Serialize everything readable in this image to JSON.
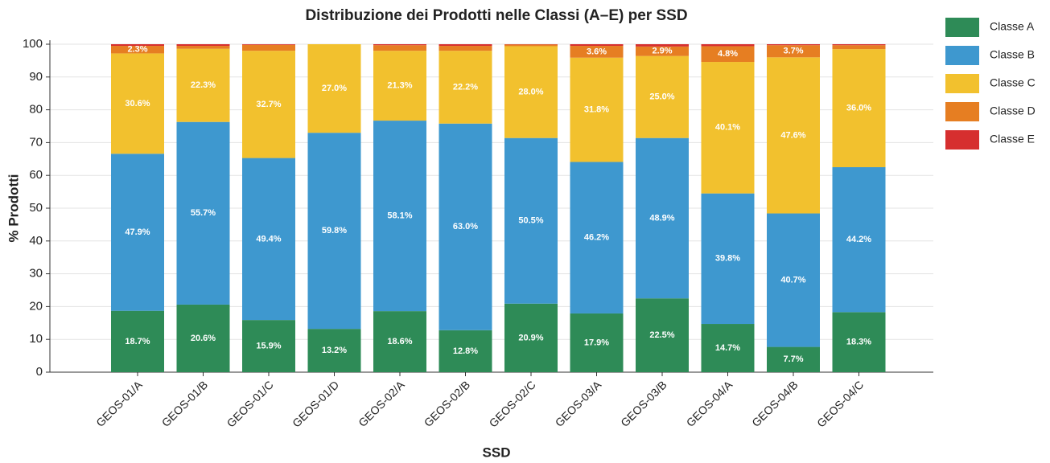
{
  "chart_data": {
    "type": "stacked_bar",
    "title": "Distribuzione dei Prodotti nelle Classi (A–E) per SSD",
    "x_label": "SSD",
    "y_label": "% Prodotti",
    "categories": [
      "GEOS-01/A",
      "GEOS-01/B",
      "GEOS-01/C",
      "GEOS-01/D",
      "GEOS-02/A",
      "GEOS-02/B",
      "GEOS-02/C",
      "GEOS-03/A",
      "GEOS-03/B",
      "GEOS-04/A",
      "GEOS-04/B",
      "GEOS-04/C"
    ],
    "series": [
      {
        "name": "Classe A",
        "color": "#2e8b57",
        "values": [
          18.7,
          20.6,
          15.9,
          13.2,
          18.6,
          12.8,
          20.9,
          17.9,
          22.5,
          14.7,
          7.7,
          18.3
        ],
        "value_labels": [
          "18.7%",
          "20.6%",
          "15.9%",
          "13.2%",
          "18.6%",
          "12.8%",
          "20.9%",
          "17.9%",
          "22.5%",
          "14.7%",
          "7.7%",
          "18.3%"
        ]
      },
      {
        "name": "Classe B",
        "color": "#3e98cf",
        "values": [
          47.9,
          55.7,
          49.4,
          59.8,
          58.1,
          63.0,
          50.5,
          46.2,
          48.9,
          39.8,
          40.7,
          44.2
        ],
        "value_labels": [
          "47.9%",
          "55.7%",
          "49.4%",
          "59.8%",
          "58.1%",
          "63.0%",
          "50.5%",
          "46.2%",
          "48.9%",
          "39.8%",
          "40.7%",
          "44.2%"
        ]
      },
      {
        "name": "Classe C",
        "color": "#f2c12e",
        "values": [
          30.6,
          22.3,
          32.7,
          27.0,
          21.3,
          22.2,
          28.0,
          31.8,
          25.0,
          40.1,
          47.6,
          36.0
        ],
        "value_labels": [
          "30.6%",
          "22.3%",
          "32.7%",
          "27.0%",
          "21.3%",
          "22.2%",
          "28.0%",
          "31.8%",
          "25.0%",
          "40.1%",
          "47.6%",
          "36.0%"
        ]
      },
      {
        "name": "Classe D",
        "color": "#e67e22",
        "values": [
          2.3,
          0.9,
          1.8,
          0,
          1.7,
          1.5,
          0.5,
          3.6,
          2.9,
          4.8,
          3.7,
          1.2
        ],
        "value_labels": [
          "2.3%",
          null,
          null,
          null,
          null,
          null,
          null,
          "3.6%",
          "2.9%",
          "4.8%",
          "3.7%",
          null
        ]
      },
      {
        "name": "Classe E",
        "color": "#d62f2f",
        "values": [
          0.5,
          0.5,
          0.2,
          0,
          0.3,
          0.5,
          0.1,
          0.5,
          0.7,
          0.6,
          0.3,
          0.3
        ],
        "value_labels": [
          null,
          null,
          null,
          null,
          null,
          null,
          null,
          null,
          null,
          null,
          null,
          null
        ]
      }
    ],
    "ylim": [
      0,
      100
    ],
    "yticks": [
      0,
      10,
      20,
      30,
      40,
      50,
      60,
      70,
      80,
      90,
      100
    ],
    "grid": true,
    "legend": "right"
  }
}
